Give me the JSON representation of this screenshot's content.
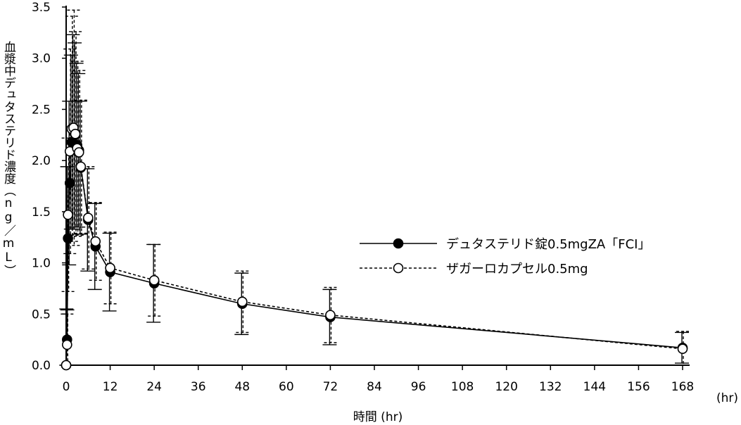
{
  "chart_data": {
    "type": "line",
    "xlabel": "時間 (hr)",
    "x_unit": "(hr)",
    "ylabel": "血漿中デュタステリド濃度（ng／mL）",
    "xlim": [
      0,
      168
    ],
    "ylim": [
      0,
      3.5
    ],
    "x_ticks": [
      0,
      12,
      24,
      36,
      48,
      60,
      72,
      84,
      96,
      108,
      120,
      132,
      144,
      156,
      168
    ],
    "y_ticks": [
      "0.0",
      "0.5",
      "1.0",
      "1.5",
      "2.0",
      "2.5",
      "3.0",
      "3.5"
    ],
    "legend_position": "center-right",
    "x": [
      0,
      0.25,
      0.5,
      1,
      1.5,
      2,
      2.5,
      3,
      3.5,
      4,
      6,
      8,
      12,
      24,
      48,
      72,
      168
    ],
    "series": [
      {
        "name": "デュタステリド錠0.5mgZA「FCI」",
        "style": "solid",
        "marker": "filled-circle",
        "values": [
          0,
          0.25,
          1.24,
          1.78,
          2.18,
          2.28,
          2.25,
          2.15,
          2.1,
          1.93,
          1.42,
          1.16,
          0.91,
          0.8,
          0.6,
          0.47,
          0.17
        ],
        "sd": [
          0,
          0.3,
          0.7,
          0.8,
          0.85,
          0.95,
          0.9,
          0.8,
          0.75,
          0.65,
          0.5,
          0.42,
          0.38,
          0.38,
          0.3,
          0.27,
          0.15
        ]
      },
      {
        "name": "ザガーロカプセル0.5mg",
        "style": "dashed",
        "marker": "open-circle",
        "values": [
          0,
          0.2,
          1.47,
          2.09,
          2.31,
          2.32,
          2.26,
          2.12,
          2.08,
          1.94,
          1.44,
          1.21,
          0.95,
          0.83,
          0.62,
          0.49,
          0.16
        ],
        "sd": [
          0,
          0.3,
          0.75,
          1.0,
          1.1,
          1.15,
          1.0,
          0.85,
          0.8,
          0.65,
          0.5,
          0.38,
          0.35,
          0.35,
          0.3,
          0.27,
          0.17
        ]
      }
    ]
  }
}
